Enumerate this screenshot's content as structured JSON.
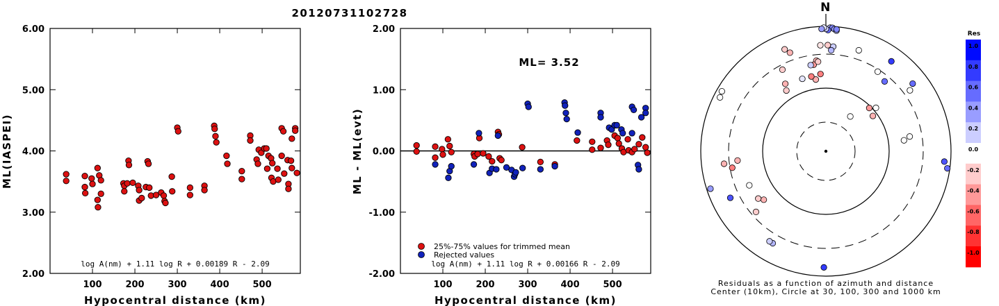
{
  "figure": {
    "title": "20120731102728"
  },
  "chart_data": [
    {
      "type": "scatter",
      "ylabel": "ML(IASPEI)",
      "xlabel": "Hypocentral distance (km)",
      "xlim": [
        0,
        590
      ],
      "ylim": [
        2.0,
        6.0
      ],
      "xticks": [
        "100",
        "200",
        "300",
        "400",
        "500"
      ],
      "yticks": [
        "2.00",
        "3.00",
        "4.00",
        "5.00",
        "6.00"
      ],
      "formula": "log A(nm) + 1.11 log R + 0.00189 R - 2.09",
      "series": [
        {
          "color": "#dd1111",
          "points": [
            [
              38,
              3.62
            ],
            [
              38,
              3.51
            ],
            [
              82,
              3.59
            ],
            [
              82,
              3.41
            ],
            [
              83,
              3.31
            ],
            [
              98,
              3.55
            ],
            [
              100,
              3.46
            ],
            [
              112,
              3.72
            ],
            [
              112,
              3.2
            ],
            [
              113,
              3.08
            ],
            [
              116,
              3.6
            ],
            [
              120,
              3.52
            ],
            [
              120,
              3.3
            ],
            [
              173,
              3.47
            ],
            [
              175,
              3.43
            ],
            [
              175,
              3.34
            ],
            [
              182,
              3.47
            ],
            [
              185,
              3.84
            ],
            [
              186,
              3.77
            ],
            [
              195,
              3.48
            ],
            [
              208,
              3.43
            ],
            [
              210,
              3.36
            ],
            [
              210,
              3.19
            ],
            [
              216,
              3.23
            ],
            [
              226,
              3.41
            ],
            [
              230,
              3.83
            ],
            [
              232,
              3.79
            ],
            [
              234,
              3.4
            ],
            [
              238,
              3.27
            ],
            [
              250,
              3.28
            ],
            [
              262,
              3.32
            ],
            [
              268,
              3.27
            ],
            [
              270,
              3.18
            ],
            [
              272,
              3.15
            ],
            [
              287,
              3.58
            ],
            [
              288,
              3.34
            ],
            [
              300,
              4.38
            ],
            [
              302,
              4.32
            ],
            [
              330,
              3.4
            ],
            [
              330,
              3.28
            ],
            [
              364,
              3.43
            ],
            [
              364,
              3.36
            ],
            [
              387,
              4.41
            ],
            [
              388,
              4.36
            ],
            [
              390,
              4.24
            ],
            [
              392,
              4.14
            ],
            [
              416,
              3.92
            ],
            [
              418,
              3.79
            ],
            [
              452,
              3.67
            ],
            [
              452,
              3.54
            ],
            [
              472,
              4.25
            ],
            [
              472,
              4.17
            ],
            [
              487,
              3.86
            ],
            [
              490,
              3.79
            ],
            [
              492,
              4.02
            ],
            [
              498,
              3.97
            ],
            [
              505,
              4.04
            ],
            [
              510,
              4.04
            ],
            [
              512,
              3.71
            ],
            [
              515,
              3.92
            ],
            [
              521,
              3.88
            ],
            [
              522,
              3.56
            ],
            [
              524,
              3.8
            ],
            [
              526,
              3.5
            ],
            [
              536,
              3.71
            ],
            [
              538,
              3.53
            ],
            [
              546,
              4.37
            ],
            [
              546,
              3.92
            ],
            [
              550,
              4.32
            ],
            [
              552,
              3.63
            ],
            [
              560,
              3.85
            ],
            [
              562,
              3.46
            ],
            [
              562,
              3.38
            ],
            [
              568,
              3.84
            ],
            [
              570,
              3.72
            ],
            [
              570,
              4.2
            ],
            [
              578,
              4.37
            ],
            [
              578,
              4.33
            ],
            [
              582,
              3.64
            ],
            [
              590,
              3.61
            ],
            [
              592,
              3.49
            ]
          ]
        }
      ]
    },
    {
      "type": "scatter",
      "ylabel": "ML - ML(evt)",
      "xlabel": "Hypocentral distance (km)",
      "xlim": [
        0,
        590
      ],
      "ylim": [
        -2.0,
        2.0
      ],
      "xticks": [
        "100",
        "200",
        "300",
        "400",
        "500"
      ],
      "yticks": [
        "-2.00",
        "-1.00",
        "0.00",
        "1.00",
        "2.00"
      ],
      "annotation": "ML= 3.52",
      "formula": "log A(nm) + 1.11 log R + 0.00166 R - 2.09",
      "legend": [
        {
          "label": "25%-75% values for trimmed mean",
          "color": "#dd1111"
        },
        {
          "label": "Rejected values",
          "color": "#1122bb"
        }
      ],
      "series": [
        {
          "color": "#dd1111",
          "points": [
            [
              38,
              0.09
            ],
            [
              38,
              -0.01
            ],
            [
              82,
              0.07
            ],
            [
              82,
              -0.11
            ],
            [
              98,
              0.03
            ],
            [
              100,
              -0.06
            ],
            [
              112,
              0.19
            ],
            [
              116,
              0.08
            ],
            [
              120,
              -0.02
            ],
            [
              173,
              -0.05
            ],
            [
              175,
              -0.09
            ],
            [
              182,
              -0.05
            ],
            [
              186,
              0.21
            ],
            [
              195,
              -0.04
            ],
            [
              208,
              -0.09
            ],
            [
              216,
              -0.17
            ],
            [
              230,
              0.31
            ],
            [
              232,
              0.27
            ],
            [
              234,
              -0.12
            ],
            [
              238,
              -0.15
            ],
            [
              287,
              0.06
            ],
            [
              330,
              -0.18
            ],
            [
              364,
              -0.22
            ],
            [
              416,
              0.17
            ],
            [
              452,
              0.15
            ],
            [
              452,
              0.02
            ],
            [
              472,
              0.05
            ],
            [
              487,
              0.17
            ],
            [
              490,
              0.1
            ],
            [
              505,
              0.25
            ],
            [
              512,
              0.21
            ],
            [
              515,
              0.12
            ],
            [
              522,
              0.04
            ],
            [
              526,
              -0.02
            ],
            [
              536,
              0.19
            ],
            [
              538,
              0.01
            ],
            [
              546,
              -0.02
            ],
            [
              552,
              0.03
            ],
            [
              562,
              0.11
            ],
            [
              570,
              0.22
            ],
            [
              578,
              0.06
            ],
            [
              582,
              -0.03
            ],
            [
              590,
              -0.01
            ]
          ]
        },
        {
          "color": "#1122bb",
          "points": [
            [
              82,
              -0.22
            ],
            [
              113,
              -0.44
            ],
            [
              116,
              -0.33
            ],
            [
              120,
              -0.25
            ],
            [
              173,
              -0.22
            ],
            [
              185,
              0.29
            ],
            [
              210,
              -0.36
            ],
            [
              216,
              -0.29
            ],
            [
              226,
              -0.3
            ],
            [
              230,
              0.25
            ],
            [
              250,
              -0.27
            ],
            [
              262,
              -0.31
            ],
            [
              268,
              -0.42
            ],
            [
              270,
              -0.38
            ],
            [
              272,
              -0.35
            ],
            [
              288,
              -0.28
            ],
            [
              300,
              0.77
            ],
            [
              302,
              0.72
            ],
            [
              330,
              -0.3
            ],
            [
              364,
              -0.25
            ],
            [
              387,
              0.79
            ],
            [
              388,
              0.74
            ],
            [
              390,
              0.62
            ],
            [
              392,
              0.52
            ],
            [
              418,
              0.3
            ],
            [
              472,
              0.62
            ],
            [
              472,
              0.55
            ],
            [
              492,
              0.38
            ],
            [
              498,
              0.35
            ],
            [
              505,
              0.42
            ],
            [
              510,
              0.42
            ],
            [
              521,
              0.35
            ],
            [
              524,
              0.29
            ],
            [
              546,
              0.72
            ],
            [
              550,
              0.67
            ],
            [
              546,
              0.29
            ],
            [
              560,
              -0.23
            ],
            [
              562,
              -0.3
            ],
            [
              568,
              0.55
            ],
            [
              578,
              0.7
            ],
            [
              578,
              0.62
            ]
          ]
        }
      ]
    },
    {
      "type": "polar-scatter",
      "north_label": "N",
      "caption_line1": "Residuals as a function of azimuth and distance",
      "caption_line2": "Center (10km), Circle at 30, 100, 300 and 1000 km",
      "colorbar_title": "Res",
      "colorbar_ticks": [
        "1.0",
        "0.8",
        "0.6",
        "0.4",
        "0.2",
        "0.0",
        "-0.2",
        "-0.4",
        "-0.6",
        "-0.8",
        "-1.0"
      ],
      "points": [
        [
          2,
          0.99,
          0.3
        ],
        [
          3,
          0.99,
          0.5
        ],
        [
          4,
          0.98,
          0.4
        ],
        [
          5,
          0.97,
          0.3
        ],
        [
          1,
          0.97,
          0.6
        ],
        [
          0,
          0.98,
          0.2
        ],
        [
          359,
          0.99,
          0.1
        ],
        [
          358,
          0.98,
          0.4
        ],
        [
          5,
          0.98,
          0.5
        ],
        [
          4,
          0.84,
          0.2
        ],
        [
          3,
          0.81,
          0.3
        ],
        [
          1,
          0.85,
          -0.2
        ],
        [
          357,
          0.85,
          -0.1
        ],
        [
          354,
          0.73,
          -0.3
        ],
        [
          352,
          0.7,
          -0.4
        ],
        [
          355,
          0.72,
          -0.2
        ],
        [
          356,
          0.62,
          -0.5
        ],
        [
          352,
          0.58,
          -0.3
        ],
        [
          349,
          0.61,
          -0.5
        ],
        [
          340,
          0.84,
          -0.3
        ],
        [
          338,
          0.88,
          -0.2
        ],
        [
          332,
          0.74,
          -0.2
        ],
        [
          329,
          0.63,
          -0.3
        ],
        [
          327,
          0.58,
          -0.2
        ],
        [
          350,
          0.7,
          0.2
        ],
        [
          342,
          0.61,
          0.1
        ],
        [
          18,
          0.85,
          0.0
        ],
        [
          36,
          0.89,
          0.8
        ],
        [
          33,
          0.76,
          0.0
        ],
        [
          40,
          0.73,
          0.6
        ],
        [
          52,
          0.88,
          0.6
        ],
        [
          54,
          0.83,
          0.0
        ],
        [
          49,
          0.53,
          0.0
        ],
        [
          45,
          0.49,
          -0.4
        ],
        [
          53,
          0.47,
          -0.3
        ],
        [
          35,
          0.34,
          0.0
        ],
        [
          80,
          0.68,
          0.0
        ],
        [
          82,
          0.63,
          0.0
        ],
        [
          95,
          0.95,
          0.7
        ],
        [
          98,
          0.98,
          0.6
        ],
        [
          181,
          0.93,
          0.8
        ],
        [
          210,
          0.85,
          0.3
        ],
        [
          212,
          0.85,
          0.2
        ],
        [
          229,
          0.74,
          -0.2
        ],
        [
          232,
          0.63,
          -0.3
        ],
        [
          235,
          0.66,
          -0.2
        ],
        [
          244,
          0.85,
          0.7
        ],
        [
          252,
          0.97,
          0.4
        ],
        [
          260,
          0.76,
          -0.5
        ],
        [
          263,
          0.82,
          -0.3
        ],
        [
          264,
          0.71,
          -0.3
        ],
        [
          246,
          0.67,
          0.0
        ],
        [
          297,
          0.95,
          0.0
        ],
        [
          300,
          0.96,
          0.0
        ]
      ]
    }
  ]
}
